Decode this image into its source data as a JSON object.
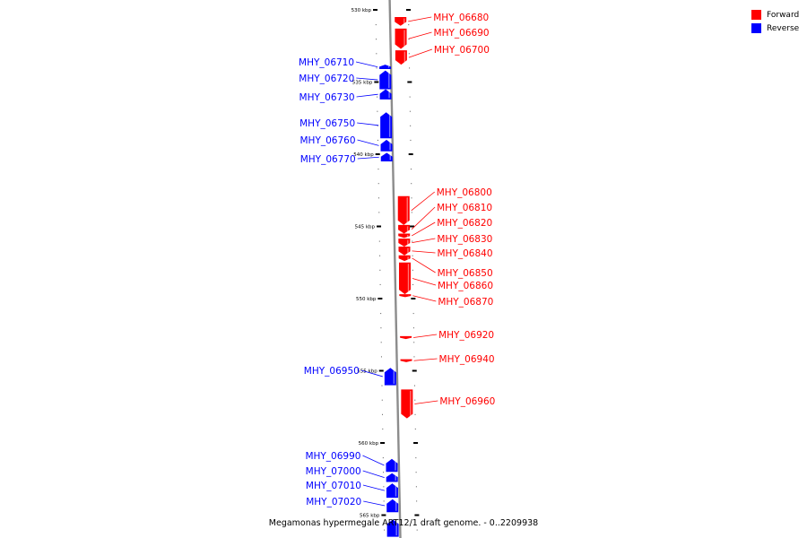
{
  "legend": {
    "forward_label": "Forward",
    "reverse_label": "Reverse",
    "forward_color": "#ff0000",
    "reverse_color": "#0000ff"
  },
  "caption": "Megamonas hypermegale ART12/1 draft genome. - 0..2209938",
  "axis": {
    "ticks": [
      {
        "kbp": 530,
        "label": "530 kbp"
      },
      {
        "kbp": 535,
        "label": "535 kbp"
      },
      {
        "kbp": 540,
        "label": "540 kbp"
      },
      {
        "kbp": 545,
        "label": "545 kbp"
      },
      {
        "kbp": 550,
        "label": "550 kbp"
      },
      {
        "kbp": 555,
        "label": "555 kbp"
      },
      {
        "kbp": 560,
        "label": "560 kbp"
      },
      {
        "kbp": 565,
        "label": "565 kbp"
      }
    ]
  },
  "genes": [
    {
      "id": "MHY_06680",
      "strand": "forward",
      "start_kbp": 530.5,
      "end_kbp": 531.1
    },
    {
      "id": "MHY_06690",
      "strand": "forward",
      "start_kbp": 531.3,
      "end_kbp": 532.7
    },
    {
      "id": "MHY_06700",
      "strand": "forward",
      "start_kbp": 532.8,
      "end_kbp": 533.8
    },
    {
      "id": "MHY_06710",
      "strand": "reverse",
      "start_kbp": 533.8,
      "end_kbp": 534.1
    },
    {
      "id": "MHY_06720",
      "strand": "reverse",
      "start_kbp": 534.2,
      "end_kbp": 535.5
    },
    {
      "id": "MHY_06730",
      "strand": "reverse",
      "start_kbp": 535.5,
      "end_kbp": 536.2
    },
    {
      "id": "MHY_06750",
      "strand": "reverse",
      "start_kbp": 537.1,
      "end_kbp": 538.9
    },
    {
      "id": "MHY_06760",
      "strand": "reverse",
      "start_kbp": 539.0,
      "end_kbp": 539.8
    },
    {
      "id": "MHY_06770",
      "strand": "reverse",
      "start_kbp": 539.9,
      "end_kbp": 540.5
    },
    {
      "id": "MHY_06800",
      "strand": "forward",
      "start_kbp": 542.9,
      "end_kbp": 544.9
    },
    {
      "id": "MHY_06810",
      "strand": "forward",
      "start_kbp": 544.9,
      "end_kbp": 545.5
    },
    {
      "id": "MHY_06820",
      "strand": "forward",
      "start_kbp": 545.5,
      "end_kbp": 545.8
    },
    {
      "id": "MHY_06830",
      "strand": "forward",
      "start_kbp": 545.85,
      "end_kbp": 546.4
    },
    {
      "id": "MHY_06840",
      "strand": "forward",
      "start_kbp": 546.4,
      "end_kbp": 547.0
    },
    {
      "id": "MHY_06850",
      "strand": "forward",
      "start_kbp": 547.0,
      "end_kbp": 547.4
    },
    {
      "id": "MHY_06860",
      "strand": "forward",
      "start_kbp": 547.5,
      "end_kbp": 549.7
    },
    {
      "id": "MHY_06870",
      "strand": "forward",
      "start_kbp": 549.7,
      "end_kbp": 549.9
    },
    {
      "id": "MHY_06920",
      "strand": "forward",
      "start_kbp": 552.6,
      "end_kbp": 552.8
    },
    {
      "id": "MHY_06940",
      "strand": "forward",
      "start_kbp": 554.2,
      "end_kbp": 554.4
    },
    {
      "id": "MHY_06950",
      "strand": "reverse",
      "start_kbp": 554.8,
      "end_kbp": 556.0
    },
    {
      "id": "MHY_06960",
      "strand": "forward",
      "start_kbp": 556.3,
      "end_kbp": 558.3
    },
    {
      "id": "MHY_06990",
      "strand": "reverse",
      "start_kbp": 561.1,
      "end_kbp": 562.0
    },
    {
      "id": "MHY_07000",
      "strand": "reverse",
      "start_kbp": 562.1,
      "end_kbp": 562.7
    },
    {
      "id": "MHY_07010",
      "strand": "reverse",
      "start_kbp": 562.8,
      "end_kbp": 563.8
    },
    {
      "id": "MHY_07020",
      "strand": "reverse",
      "start_kbp": 563.9,
      "end_kbp": 564.8
    },
    {
      "id": "",
      "strand": "reverse",
      "start_kbp": 565.3,
      "end_kbp": 566.5
    }
  ]
}
